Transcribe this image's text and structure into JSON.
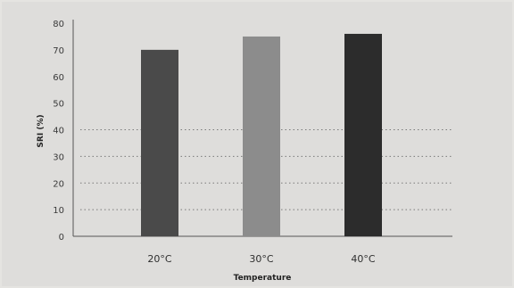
{
  "chart_data": {
    "type": "bar",
    "categories": [
      "20°C",
      "30°C",
      "40°C"
    ],
    "values": [
      70,
      75,
      76
    ],
    "bar_colors": [
      "#4a4a4a",
      "#8c8c8c",
      "#2c2c2c"
    ],
    "title": "",
    "xlabel": "Temperature",
    "ylabel": "SRI (%)",
    "ylim": [
      0,
      80
    ],
    "yticks": [
      "0",
      "10",
      "20",
      "30",
      "40",
      "50",
      "60",
      "70",
      "80"
    ],
    "grid": "dotted, y = 10 to 40",
    "legend": "none"
  }
}
